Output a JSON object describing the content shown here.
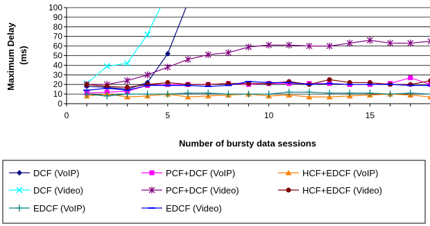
{
  "chart_data": {
    "type": "line",
    "title": "",
    "xlabel": "Number of bursty data sessions",
    "ylabel": "Maximum Delay (ms)",
    "ylabel_lines": [
      "Maximum Delay",
      "(ms)"
    ],
    "xlim": [
      0,
      18
    ],
    "ylim": [
      0,
      100
    ],
    "x_ticks": [
      0,
      5,
      10,
      15
    ],
    "y_ticks": [
      0,
      10,
      20,
      30,
      40,
      50,
      60,
      70,
      80,
      90,
      100
    ],
    "x_tick_labels": [
      "0",
      "5",
      "10",
      "15"
    ],
    "y_tick_labels": [
      "0",
      "10",
      "20",
      "30",
      "40",
      "50",
      "60",
      "70",
      "80",
      "90",
      "100"
    ],
    "grid": "horizontal",
    "legend_position": "bottom",
    "series": [
      {
        "name": "DCF (VoIP)",
        "color": "#000080",
        "marker": "diamond",
        "x": [
          1,
          2,
          3,
          4,
          5,
          6
        ],
        "y": [
          18,
          17,
          15,
          22,
          52,
          105
        ]
      },
      {
        "name": "PCF+DCF (VoIP)",
        "color": "#ff00ff",
        "marker": "square",
        "x": [
          1,
          2,
          3,
          4,
          5,
          6,
          7,
          8,
          9,
          10,
          11,
          12,
          13,
          14,
          15,
          16,
          17,
          18
        ],
        "y": [
          11,
          12,
          13,
          19,
          20,
          20,
          20,
          21,
          20,
          21,
          21,
          21,
          21,
          20,
          20,
          21,
          27,
          20
        ]
      },
      {
        "name": "HCF+EDCF (VoIP)",
        "color": "#ff8000",
        "marker": "triangle",
        "x": [
          1,
          2,
          3,
          4,
          5,
          6,
          7,
          8,
          9,
          10,
          11,
          12,
          13,
          14,
          15,
          16,
          17,
          18
        ],
        "y": [
          8,
          10,
          7,
          8,
          10,
          7,
          8,
          9,
          10,
          8,
          9,
          7,
          7,
          8,
          9,
          10,
          9,
          7
        ]
      },
      {
        "name": "DCF (Video)",
        "color": "#00ffff",
        "marker": "x",
        "x": [
          1,
          2,
          3,
          4,
          4.7
        ],
        "y": [
          21,
          39,
          42,
          72,
          103
        ]
      },
      {
        "name": "PCF+DCF (Video)",
        "color": "#800080",
        "marker": "star",
        "x": [
          1,
          2,
          3,
          4,
          5,
          6,
          7,
          8,
          9,
          10,
          11,
          12,
          13,
          14,
          15,
          16,
          17,
          18
        ],
        "y": [
          20,
          20,
          24,
          30,
          38,
          46,
          51,
          53,
          59,
          61,
          61,
          60,
          60,
          63,
          66,
          63,
          63,
          65
        ]
      },
      {
        "name": "HCF+EDCF (Video)",
        "color": "#800000",
        "marker": "circle",
        "x": [
          1,
          2,
          3,
          4,
          5,
          6,
          7,
          8,
          9,
          10,
          11,
          12,
          13,
          14,
          15,
          16,
          17,
          18
        ],
        "y": [
          20,
          18,
          17,
          20,
          22,
          20,
          20,
          21,
          21,
          21,
          23,
          20,
          25,
          22,
          22,
          20,
          20,
          24
        ]
      },
      {
        "name": "EDCF (VoIP)",
        "color": "#008080",
        "marker": "plus",
        "x": [
          1,
          2,
          3,
          4,
          5,
          6,
          7,
          8,
          9,
          10,
          11,
          12,
          13,
          14,
          15,
          16,
          17,
          18
        ],
        "y": [
          10,
          8,
          10,
          10,
          10,
          11,
          11,
          10,
          10,
          10,
          12,
          12,
          11,
          11,
          11,
          10,
          11,
          10
        ]
      },
      {
        "name": "EDCF (Video)",
        "color": "#0000ff",
        "marker": "dash",
        "x": [
          1,
          2,
          3,
          4,
          5,
          6,
          7,
          8,
          9,
          10,
          11,
          12,
          13,
          14,
          15,
          16,
          17,
          18
        ],
        "y": [
          14,
          16,
          14,
          19,
          19,
          19,
          18,
          19,
          23,
          22,
          22,
          20,
          21,
          20,
          20,
          20,
          19,
          19
        ]
      }
    ]
  }
}
